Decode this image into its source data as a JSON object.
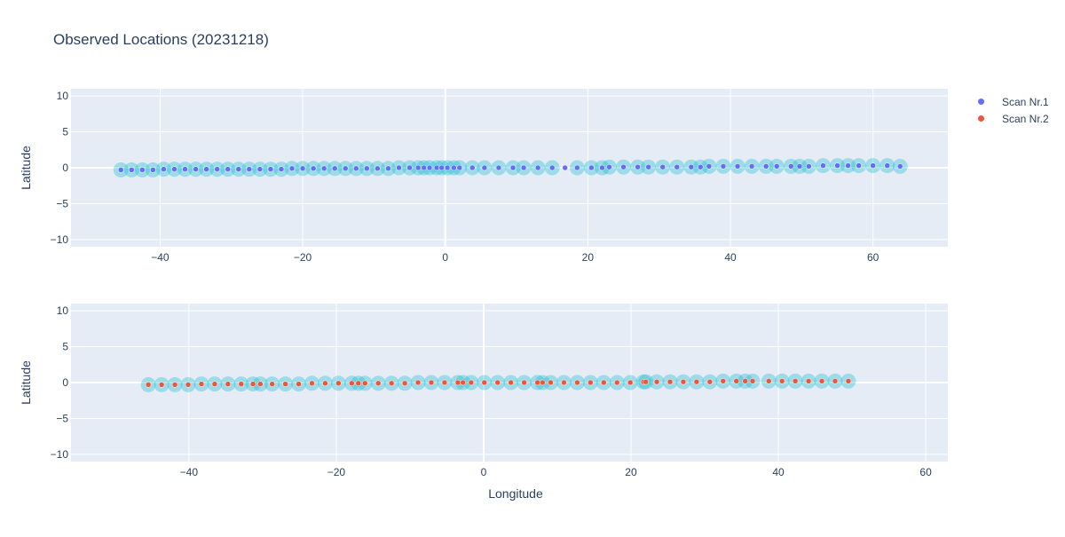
{
  "title": "Observed Locations (20231218)",
  "colors": {
    "plot_bg": "#e5ecf6",
    "grid": "#ffffff",
    "highlight": "#17becf",
    "highlight_opacity": 0.35
  },
  "legend": [
    {
      "name": "Scan Nr.1",
      "color": "#636efa"
    },
    {
      "name": "Scan Nr.2",
      "color": "#ef553b"
    }
  ],
  "chart_data": [
    {
      "type": "scatter",
      "title": "Observed Locations (20231218)",
      "xlabel": "",
      "ylabel": "Latitude",
      "xlim": [
        -52.5,
        70.5
      ],
      "ylim": [
        -11,
        11
      ],
      "x_ticks": [
        -40,
        -20,
        0,
        20,
        40,
        60
      ],
      "y_ticks": [
        -10,
        -5,
        0,
        5,
        10
      ],
      "grid": true,
      "series": [
        {
          "name": "Scan Nr.1",
          "color": "#636efa",
          "x": [
            -45.5,
            -44,
            -42.5,
            -41,
            -39.5,
            -38,
            -36.5,
            -35,
            -33.5,
            -32,
            -30.5,
            -29,
            -27.5,
            -26,
            -24.5,
            -23,
            -21.5,
            -20,
            -18.5,
            -17,
            -15.5,
            -14,
            -12.5,
            -11,
            -9.5,
            -8,
            -6.5,
            -5,
            -3.8,
            -3,
            -2.2,
            -1.2,
            -0.5,
            0.3,
            1.2,
            2,
            3.8,
            5.5,
            7.5,
            9.5,
            11,
            13,
            15,
            16.8,
            18.5,
            20.5,
            22,
            23,
            25,
            27,
            28.5,
            30.5,
            32.5,
            34.5,
            35.8,
            37,
            39,
            41,
            43,
            45,
            46.5,
            48.5,
            49.7,
            51,
            53,
            55,
            56.5,
            58,
            60,
            62,
            63.8
          ],
          "y": [
            -0.3,
            -0.3,
            -0.3,
            -0.3,
            -0.2,
            -0.2,
            -0.2,
            -0.2,
            -0.2,
            -0.2,
            -0.2,
            -0.2,
            -0.2,
            -0.2,
            -0.2,
            -0.2,
            -0.1,
            -0.1,
            -0.1,
            -0.1,
            -0.1,
            -0.1,
            -0.1,
            -0.1,
            -0.1,
            -0.1,
            0,
            0,
            0,
            0,
            0,
            0,
            0,
            0,
            0,
            0,
            0,
            0,
            0,
            0,
            0,
            0,
            0,
            0,
            0,
            0,
            0,
            0.1,
            0.1,
            0.1,
            0.1,
            0.1,
            0.1,
            0.1,
            0.1,
            0.2,
            0.2,
            0.2,
            0.2,
            0.2,
            0.2,
            0.2,
            0.2,
            0.2,
            0.3,
            0.3,
            0.3,
            0.3,
            0.3,
            0.3,
            0.2
          ],
          "highlighted_x": [
            -45.5,
            -44,
            -42.5,
            -41,
            -39.5,
            -38,
            -36.5,
            -35,
            -33.5,
            -32,
            -30.5,
            -29,
            -27.5,
            -26,
            -24.5,
            -23,
            -21.5,
            -20,
            -18.5,
            -17,
            -15.5,
            -14,
            -12.5,
            -11,
            -9.5,
            -8,
            -6.5,
            -5,
            -3.8,
            -3,
            -2.2,
            -1.2,
            -0.5,
            0.3,
            1.2,
            2,
            3.8,
            5.5,
            7.5,
            9.5,
            11,
            13,
            15,
            18.5,
            20.5,
            22,
            23,
            25,
            27,
            28.5,
            30.5,
            32.5,
            34.5,
            35.8,
            37,
            39,
            41,
            43,
            45,
            46.5,
            48.5,
            49.7,
            51,
            53,
            55,
            56.5,
            58,
            60,
            62,
            63.8
          ]
        }
      ]
    },
    {
      "type": "scatter",
      "xlabel": "Longitude",
      "ylabel": "Latitude",
      "xlim": [
        -56,
        63
      ],
      "ylim": [
        -11,
        11
      ],
      "x_ticks": [
        -40,
        -20,
        0,
        20,
        40,
        60
      ],
      "y_ticks": [
        -10,
        -5,
        0,
        5,
        10
      ],
      "grid": true,
      "series": [
        {
          "name": "Scan Nr.2",
          "color": "#ef553b",
          "x": [
            -45.5,
            -43.7,
            -41.9,
            -40.1,
            -38.3,
            -36.5,
            -34.7,
            -32.9,
            -31.3,
            -30.3,
            -28.7,
            -26.9,
            -25.1,
            -23.3,
            -21.5,
            -19.7,
            -17.9,
            -17,
            -16.1,
            -14.3,
            -12.5,
            -10.7,
            -8.9,
            -7.1,
            -5.3,
            -3.5,
            -2.8,
            -1.7,
            0.1,
            1.9,
            3.7,
            5.5,
            7.3,
            8,
            9.1,
            10.9,
            12.7,
            14.5,
            16.3,
            18.1,
            19.9,
            21.7,
            22,
            23.5,
            25.3,
            27.1,
            28.9,
            30.7,
            32.5,
            34.3,
            35.5,
            36.5,
            38.7,
            40.5,
            42.3,
            44.1,
            45.9,
            47.7,
            49.5
          ],
          "y": [
            -0.3,
            -0.3,
            -0.3,
            -0.3,
            -0.2,
            -0.2,
            -0.2,
            -0.2,
            -0.2,
            -0.2,
            -0.2,
            -0.2,
            -0.2,
            -0.1,
            -0.1,
            -0.1,
            -0.1,
            -0.1,
            -0.1,
            -0.1,
            -0.1,
            -0.1,
            0,
            0,
            0,
            0,
            0,
            0,
            0,
            0,
            0,
            0,
            0,
            0,
            0,
            0,
            0,
            0,
            0,
            0,
            0,
            0.1,
            0.1,
            0.1,
            0.1,
            0.1,
            0.1,
            0.1,
            0.2,
            0.2,
            0.2,
            0.2,
            0.2,
            0.2,
            0.2,
            0.2,
            0.2,
            0.2,
            0.2
          ],
          "highlighted_x": [
            -45.5,
            -43.7,
            -41.9,
            -40.1,
            -38.3,
            -36.5,
            -34.7,
            -32.9,
            -31.3,
            -30.3,
            -28.7,
            -26.9,
            -25.1,
            -23.3,
            -21.5,
            -19.7,
            -17.9,
            -17,
            -16.1,
            -14.3,
            -12.5,
            -10.7,
            -8.9,
            -7.1,
            -5.3,
            -3.5,
            -2.8,
            -1.7,
            0.1,
            1.9,
            3.7,
            5.5,
            7.3,
            8,
            9.1,
            10.9,
            12.7,
            14.5,
            16.3,
            18.1,
            19.9,
            21.7,
            22,
            23.5,
            25.3,
            27.1,
            28.9,
            30.7,
            32.5,
            34.3,
            35.5,
            36.5,
            38.7,
            40.5,
            42.3,
            44.1,
            45.9,
            47.7,
            49.5
          ]
        }
      ]
    }
  ]
}
